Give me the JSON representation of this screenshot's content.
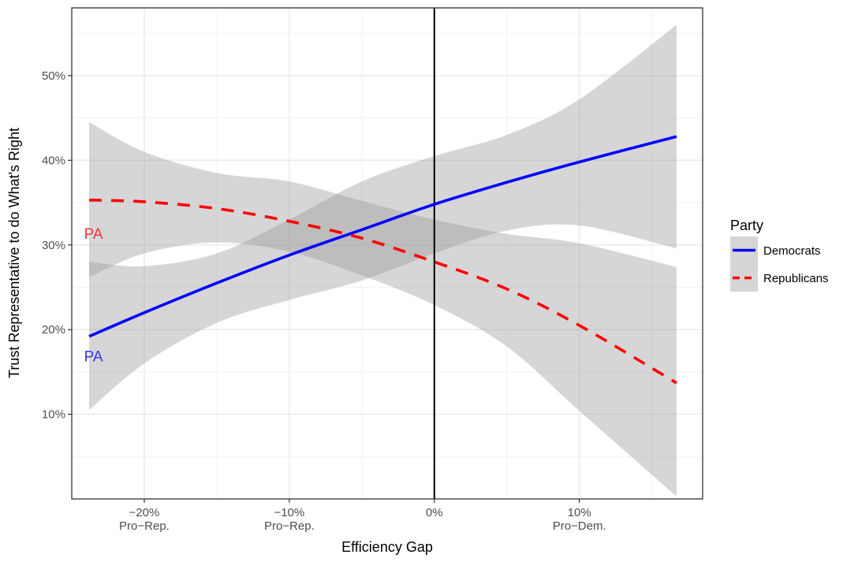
{
  "chart_data": {
    "type": "line",
    "title": "",
    "xlabel": "Efficiency Gap",
    "ylabel": "Trust Representative to do What's Right",
    "xlim": [
      -25,
      18.5
    ],
    "ylim": [
      0.0,
      0.58
    ],
    "grid": true,
    "legend_position": "right",
    "legend_title": "Party",
    "x_ticks": [
      {
        "value": -20,
        "label": "−20%",
        "sublabel": "Pro−Rep."
      },
      {
        "value": -10,
        "label": "−10%",
        "sublabel": "Pro−Rep."
      },
      {
        "value": 0,
        "label": "0%",
        "sublabel": ""
      },
      {
        "value": 10,
        "label": "10%",
        "sublabel": "Pro−Dem."
      }
    ],
    "y_ticks": [
      {
        "value": 0.1,
        "label": "10%"
      },
      {
        "value": 0.2,
        "label": "20%"
      },
      {
        "value": 0.3,
        "label": "30%"
      },
      {
        "value": 0.4,
        "label": "40%"
      },
      {
        "value": 0.5,
        "label": "50%"
      }
    ],
    "vline_x": 0,
    "series": [
      {
        "name": "Democrats",
        "color": "#0000ff",
        "linestyle": "solid",
        "x": [
          -23.8,
          -20,
          -15,
          -10,
          -5,
          0,
          5,
          10,
          16.7
        ],
        "y": [
          0.192,
          0.22,
          0.255,
          0.288,
          0.318,
          0.348,
          0.374,
          0.398,
          0.428
        ],
        "lower": [
          0.105,
          0.16,
          0.208,
          0.235,
          0.258,
          0.29,
          0.317,
          0.323,
          0.296
        ],
        "upper": [
          0.28,
          0.275,
          0.29,
          0.33,
          0.375,
          0.405,
          0.43,
          0.472,
          0.56
        ]
      },
      {
        "name": "Republicans",
        "color": "#ff0000",
        "linestyle": "dashed",
        "x": [
          -23.8,
          -20,
          -15,
          -10,
          -5,
          0,
          5,
          10,
          16.7
        ],
        "y": [
          0.353,
          0.351,
          0.343,
          0.328,
          0.308,
          0.28,
          0.248,
          0.205,
          0.137
        ],
        "lower": [
          0.262,
          0.29,
          0.303,
          0.292,
          0.264,
          0.229,
          0.18,
          0.104,
          0.003
        ],
        "upper": [
          0.445,
          0.41,
          0.385,
          0.375,
          0.352,
          0.33,
          0.313,
          0.302,
          0.274
        ]
      }
    ],
    "annotations": [
      {
        "text": "PA",
        "x": -23.5,
        "y": 0.312,
        "color": "#e8373a"
      },
      {
        "text": "PA",
        "x": -23.5,
        "y": 0.167,
        "color": "#3535e8"
      }
    ]
  }
}
